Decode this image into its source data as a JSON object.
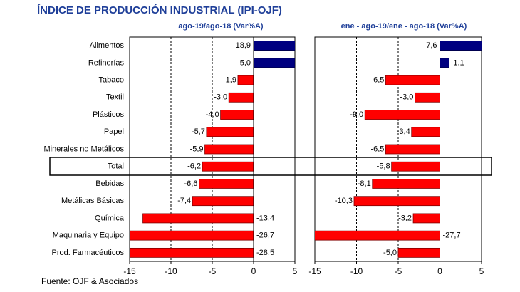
{
  "title": "ÍNDICE DE PRODUCCIÓN INDUSTRIAL (IPI-OJF)",
  "source": "Fuente: OJF & Asociados",
  "chart_data": [
    {
      "type": "hbar",
      "subtitle": "ago-19/ago-18  (Var%A)",
      "categories": [
        "Alimentos",
        "Refinerías",
        "Tabaco",
        "Textil",
        "Plásticos",
        "Papel",
        "Minerales no Metálicos",
        "Total",
        "Bebidas",
        "Metálicas Básicas",
        "Química",
        "Maquinaria y Equipo",
        "Prod. Farmacéuticos"
      ],
      "values": [
        18.9,
        5.0,
        -1.9,
        -3.0,
        -4.0,
        -5.7,
        -5.9,
        -6.2,
        -6.6,
        -7.4,
        -13.4,
        -26.7,
        -28.5
      ],
      "value_labels": [
        "18,9",
        "5,0",
        "-1,9",
        "-3,0",
        "-4,0",
        "-5,7",
        "-5,9",
        "-6,2",
        "-6,6",
        "-7,4",
        "-13,4",
        "-26,7",
        "-28,5"
      ],
      "xlim": [
        -15,
        5
      ],
      "xticks": [
        -15,
        -10,
        -5,
        0,
        5
      ],
      "grid": true,
      "positive_color": "#000080",
      "negative_color": "#ff0000"
    },
    {
      "type": "hbar",
      "subtitle": "ene - ago-19/ene - ago-18  (Var%A)",
      "values": [
        7.6,
        1.1,
        -6.5,
        -3.0,
        -9.0,
        -3.4,
        -6.5,
        -5.8,
        -8.1,
        -10.3,
        -3.2,
        -27.7,
        -5.0
      ],
      "value_labels": [
        "7,6",
        "1,1",
        "-6,5",
        "-3,0",
        "-9,0",
        "-3,4",
        "-6,5",
        "-5,8",
        "-8,1",
        "-10,3",
        "-3,2",
        "-27,7",
        "-5,0"
      ],
      "xlim": [
        -15,
        5
      ],
      "xticks": [
        -15,
        -10,
        -5,
        0,
        5
      ],
      "grid": true,
      "positive_color": "#000080",
      "negative_color": "#ff0000"
    }
  ]
}
